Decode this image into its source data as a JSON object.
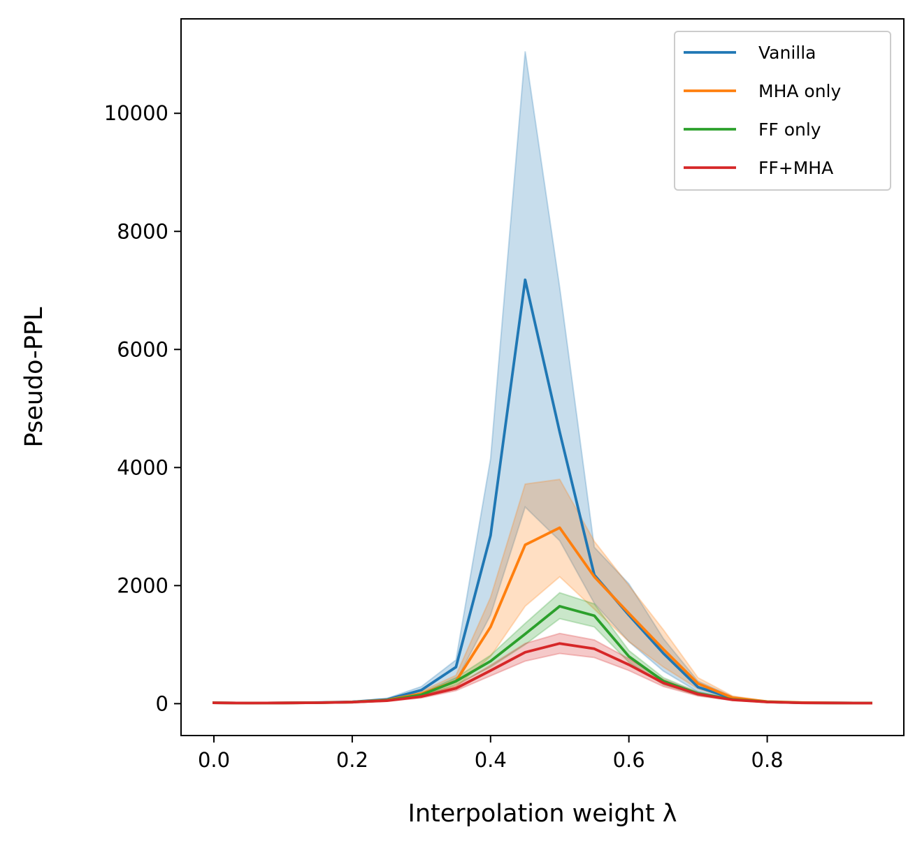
{
  "chart_data": {
    "type": "line",
    "title": "",
    "xlabel": "Interpolation weight λ",
    "ylabel": "Pseudo-PPL",
    "xlim": [
      -0.0475,
      0.9975
    ],
    "ylim": [
      -540,
      11600
    ],
    "xticks": [
      0.0,
      0.2,
      0.4,
      0.6,
      0.8
    ],
    "xtick_labels": [
      "0.0",
      "0.2",
      "0.4",
      "0.6",
      "0.8"
    ],
    "yticks": [
      0,
      2000,
      4000,
      6000,
      8000,
      10000
    ],
    "ytick_labels": [
      "0",
      "2000",
      "4000",
      "6000",
      "8000",
      "10000"
    ],
    "grid": false,
    "legend_position": "top-right",
    "x": [
      0.0,
      0.05,
      0.1,
      0.15,
      0.2,
      0.25,
      0.3,
      0.35,
      0.4,
      0.45,
      0.5,
      0.55,
      0.6,
      0.65,
      0.7,
      0.75,
      0.8,
      0.85,
      0.9,
      0.95
    ],
    "series": [
      {
        "name": "Vanilla",
        "color": "#1f77b4",
        "values": [
          15,
          10,
          12,
          18,
          30,
          70,
          230,
          620,
          2850,
          7180,
          4600,
          2180,
          1500,
          850,
          280,
          90,
          30,
          15,
          12,
          10
        ],
        "lower": [
          12,
          8,
          10,
          14,
          25,
          55,
          160,
          380,
          1500,
          3330,
          2760,
          1700,
          1050,
          550,
          200,
          70,
          25,
          12,
          10,
          8
        ],
        "upper": [
          20,
          13,
          15,
          22,
          40,
          90,
          290,
          740,
          4150,
          11050,
          7050,
          2650,
          2030,
          1100,
          380,
          120,
          40,
          20,
          15,
          12
        ]
      },
      {
        "name": "MHA only",
        "color": "#ff7f0e",
        "values": [
          15,
          10,
          12,
          16,
          28,
          60,
          170,
          380,
          1300,
          2690,
          2980,
          2150,
          1530,
          920,
          340,
          100,
          35,
          18,
          12,
          10
        ],
        "lower": [
          12,
          8,
          10,
          13,
          22,
          45,
          130,
          280,
          800,
          1650,
          2150,
          1600,
          1050,
          620,
          250,
          75,
          28,
          14,
          10,
          8
        ],
        "upper": [
          18,
          12,
          14,
          20,
          35,
          75,
          210,
          480,
          1800,
          3720,
          3800,
          2750,
          2000,
          1250,
          440,
          130,
          45,
          22,
          15,
          12
        ]
      },
      {
        "name": "FF only",
        "color": "#2ca02c",
        "values": [
          15,
          10,
          12,
          16,
          25,
          55,
          150,
          380,
          720,
          1180,
          1650,
          1490,
          800,
          380,
          170,
          70,
          30,
          15,
          12,
          10
        ],
        "lower": [
          12,
          8,
          10,
          13,
          20,
          42,
          120,
          320,
          620,
          1000,
          1440,
          1300,
          700,
          320,
          140,
          58,
          25,
          12,
          10,
          8
        ],
        "upper": [
          18,
          12,
          14,
          19,
          30,
          68,
          180,
          440,
          820,
          1360,
          1880,
          1690,
          900,
          440,
          200,
          82,
          35,
          18,
          14,
          12
        ]
      },
      {
        "name": "FF+MHA",
        "color": "#d62728",
        "values": [
          15,
          10,
          12,
          16,
          25,
          50,
          120,
          260,
          560,
          870,
          1020,
          930,
          660,
          350,
          160,
          65,
          28,
          14,
          11,
          9
        ],
        "lower": [
          12,
          8,
          10,
          13,
          20,
          40,
          95,
          220,
          470,
          720,
          850,
          780,
          560,
          290,
          130,
          53,
          23,
          11,
          9,
          7
        ],
        "upper": [
          18,
          12,
          14,
          19,
          30,
          60,
          145,
          300,
          650,
          1020,
          1190,
          1080,
          760,
          410,
          190,
          77,
          33,
          17,
          13,
          11
        ]
      }
    ]
  }
}
